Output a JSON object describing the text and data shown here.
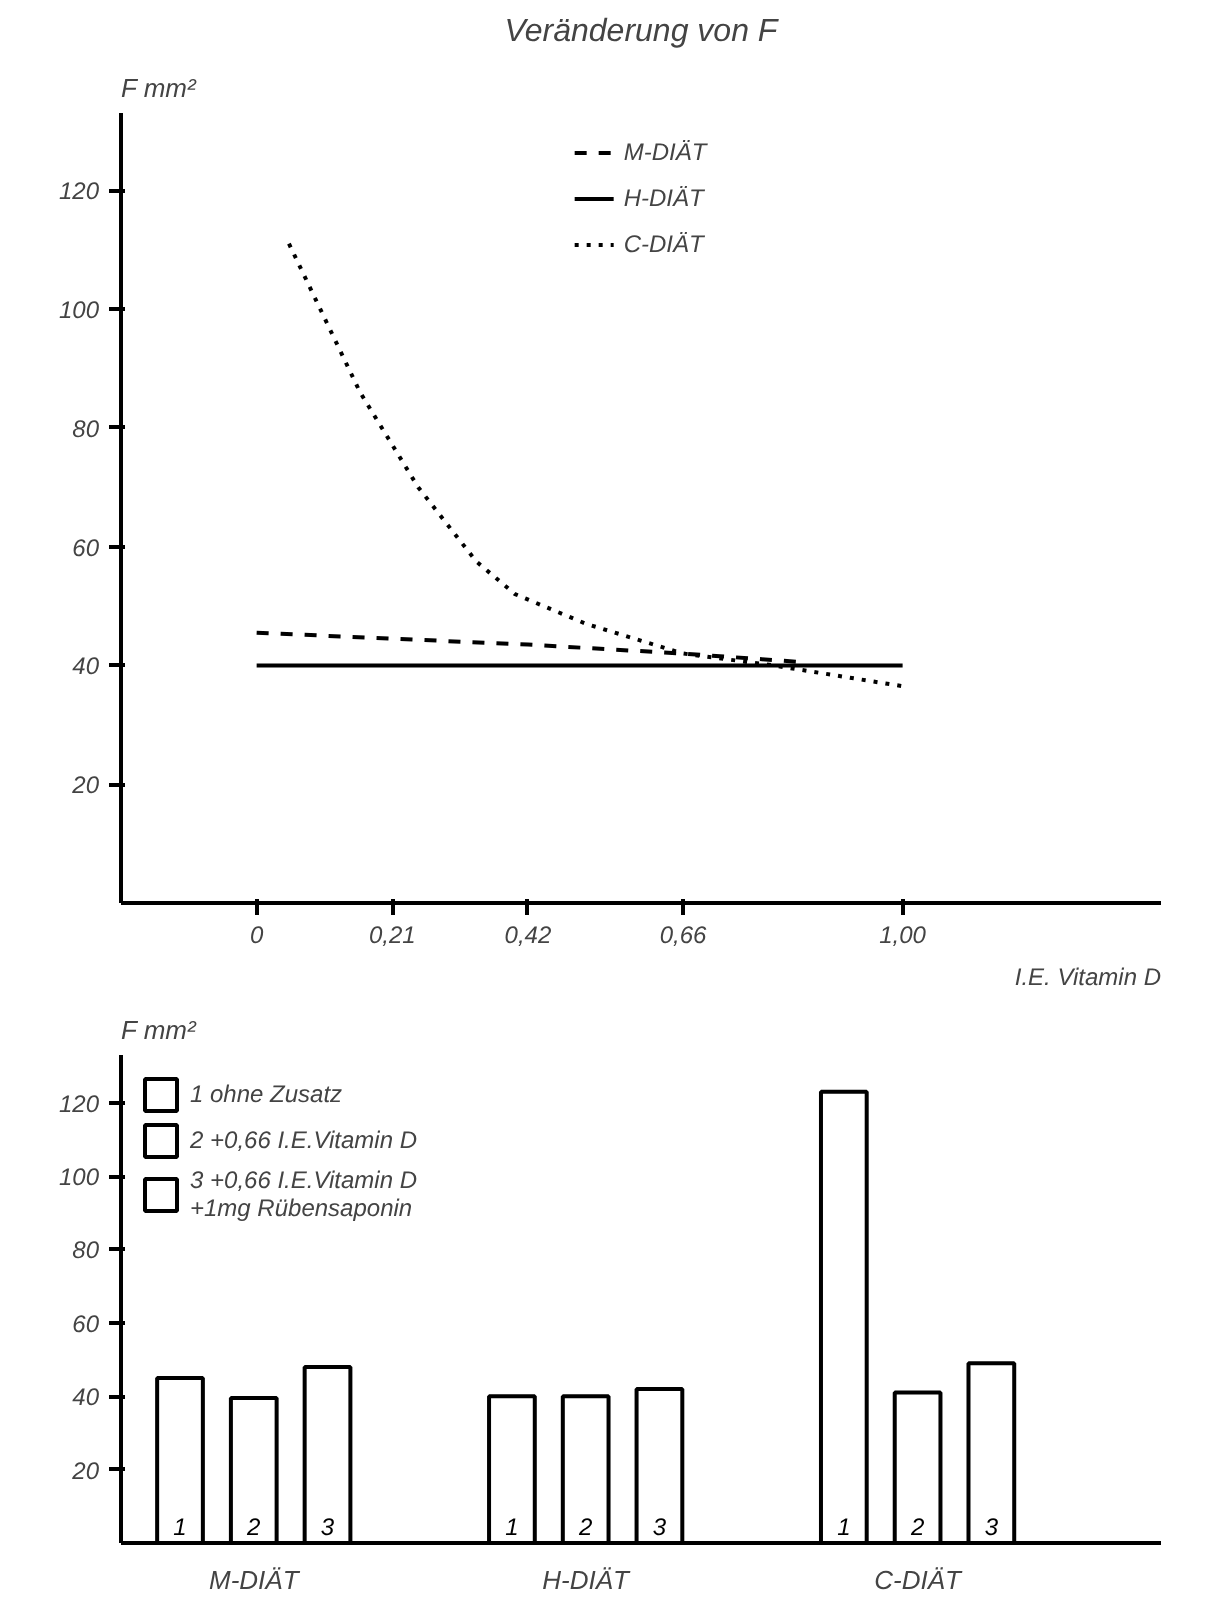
{
  "chart_data": [
    {
      "type": "line",
      "title": "Veränderung von F",
      "ylabel": "F mm²",
      "xlabel": "I.E. Vitamin D",
      "xlim": [
        -0.21,
        1.4
      ],
      "ylim": [
        0,
        133
      ],
      "xticks": [
        0,
        {
          "value": 0.21,
          "label": "0,21"
        },
        {
          "value": 0.42,
          "label": "0,42"
        },
        {
          "value": 0.66,
          "label": "0,66"
        },
        {
          "value": 1.0,
          "label": "1,00"
        }
      ],
      "yticks": [
        20,
        40,
        60,
        80,
        100,
        120
      ],
      "grid": false,
      "legend": "top",
      "series": [
        {
          "name": "M-DIÄT",
          "color": "#000000",
          "line_style": "dashed",
          "x": [
            0,
            0.21,
            0.42,
            0.66,
            0.85
          ],
          "values": [
            45.5,
            44.5,
            43.5,
            42,
            40.5
          ]
        },
        {
          "name": "H-DIÄT",
          "color": "#000000",
          "line_style": "solid",
          "x": [
            0,
            1.0
          ],
          "values": [
            40,
            40
          ]
        },
        {
          "name": "C-DIÄT",
          "color": "#000000",
          "line_style": "dotted",
          "x": [
            0.05,
            0.16,
            0.25,
            0.34,
            0.4,
            0.51,
            0.66,
            0.8,
            1.0
          ],
          "values": [
            111,
            86,
            70,
            57.5,
            52,
            47,
            42,
            40,
            36.5
          ]
        }
      ]
    },
    {
      "type": "bar",
      "ylabel": "F mm²",
      "categories": [
        "M-DIÄT",
        "H-DIÄT",
        "C-DIÄT"
      ],
      "ylim": [
        0,
        133
      ],
      "yticks": [
        20,
        40,
        60,
        80,
        100,
        120
      ],
      "grid": false,
      "legend": "top left",
      "annotations": [
        "1",
        "2",
        "3",
        "1",
        "2",
        "3",
        "1",
        "2",
        "3"
      ],
      "series": [
        {
          "name": "1 ohne Zusatz",
          "color": "#ffffff",
          "values": [
            45,
            40,
            123
          ]
        },
        {
          "name": "2 +0,66 I.E.Vitamin D",
          "color": "#ffffff",
          "values": [
            39.5,
            40,
            41
          ]
        },
        {
          "name": "3 +0,66 I.E.Vitamin D\n+1mg Rübensaponin",
          "color": "#ffffff",
          "values": [
            48,
            42,
            49
          ]
        }
      ]
    }
  ]
}
